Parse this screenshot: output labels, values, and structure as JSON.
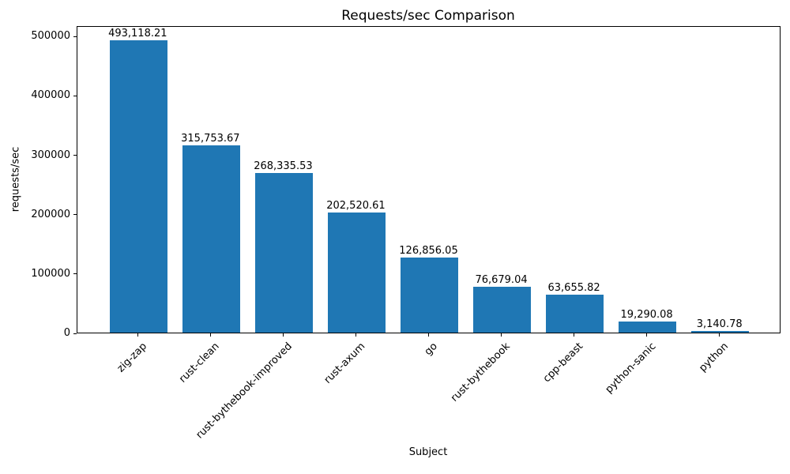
{
  "chart_data": {
    "type": "bar",
    "title": "Requests/sec Comparison",
    "xlabel": "Subject",
    "ylabel": "requests/sec",
    "categories": [
      "zig-zap",
      "rust-clean",
      "rust-bythebook-improved",
      "rust-axum",
      "go",
      "rust-bythebook",
      "cpp-beast",
      "python-sanic",
      "python"
    ],
    "values": [
      493118.21,
      315753.67,
      268335.53,
      202520.61,
      126856.05,
      76679.04,
      63655.82,
      19290.08,
      3140.78
    ],
    "value_labels": [
      "493,118.21",
      "315,753.67",
      "268,335.53",
      "202,520.61",
      "126,856.05",
      "76,679.04",
      "63,655.82",
      "19,290.08",
      "3,140.78"
    ],
    "yticks": [
      0,
      100000,
      200000,
      300000,
      400000,
      500000
    ],
    "ytick_labels": [
      "0",
      "100000",
      "200000",
      "300000",
      "400000",
      "500000"
    ],
    "ylim": [
      0,
      517774
    ],
    "grid": false,
    "legend": "none",
    "bar_color": "#1f77b4",
    "text_color": "#000000",
    "spine_color": "#000000"
  }
}
